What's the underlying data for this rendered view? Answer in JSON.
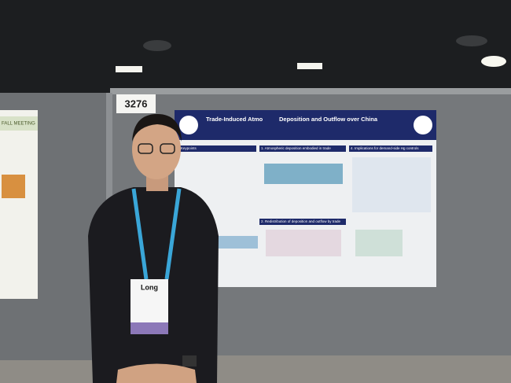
{
  "scene": {
    "board_number": "3276",
    "left_poster": {
      "banner": "FALL MEETING"
    },
    "poster": {
      "title_start": "Trade-Induced Atmo",
      "title_end": "Deposition and Outflow over China",
      "sections": [
        "Keypoints",
        "1. Atmospheric deposition embodied in trade",
        "2. Redistribution of deposition and outflow by trade",
        "4. Implications for demand-side Hg controls"
      ]
    },
    "badge": {
      "name": "Long"
    }
  }
}
